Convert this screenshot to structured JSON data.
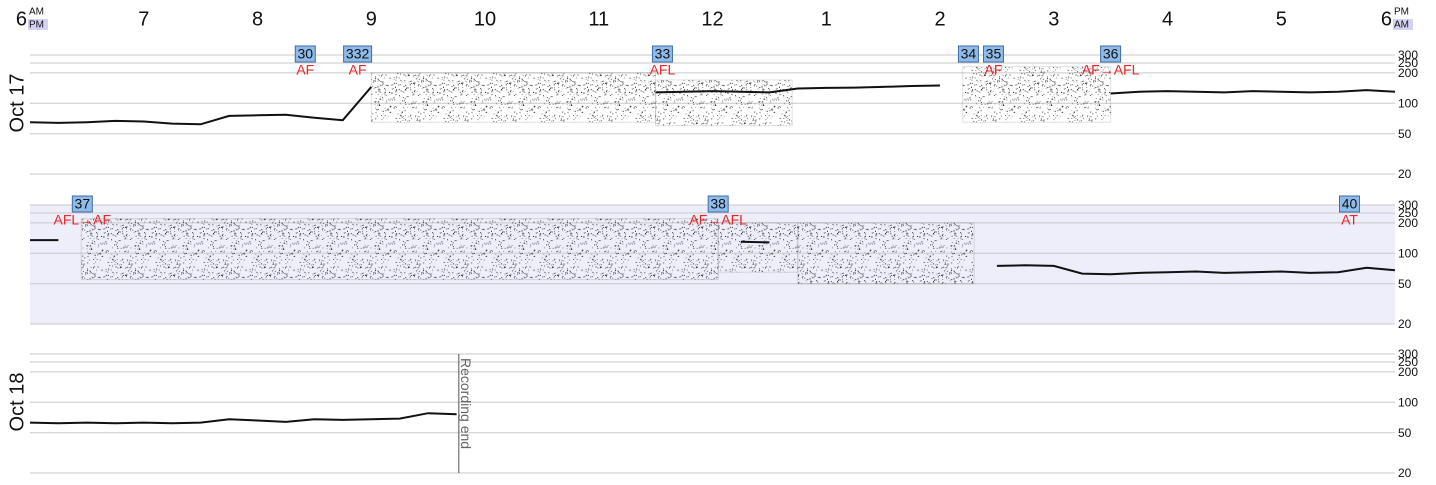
{
  "time_axis": {
    "ticks": [
      {
        "value": 0,
        "label": "6"
      },
      {
        "value": 1,
        "label": "7"
      },
      {
        "value": 2,
        "label": "8"
      },
      {
        "value": 3,
        "label": "9"
      },
      {
        "value": 4,
        "label": "10"
      },
      {
        "value": 5,
        "label": "11"
      },
      {
        "value": 6,
        "label": "12"
      },
      {
        "value": 7,
        "label": "1"
      },
      {
        "value": 8,
        "label": "2"
      },
      {
        "value": 9,
        "label": "3"
      },
      {
        "value": 10,
        "label": "4"
      },
      {
        "value": 11,
        "label": "5"
      },
      {
        "value": 12,
        "label": "6"
      }
    ],
    "start_marker": {
      "top": "AM",
      "bottom": "PM"
    },
    "end_marker": {
      "top": "PM",
      "bottom": "AM"
    },
    "highlight_color": "#d4d2f4"
  },
  "chart_data": [
    {
      "type": "line",
      "row_label": "Oct 17",
      "xlim": [
        0,
        12
      ],
      "ylim": [
        20,
        300
      ],
      "yticks": [
        20,
        50,
        100,
        200,
        250,
        300
      ],
      "log_scale": true,
      "grid": true,
      "background": "#ffffff",
      "x": [
        0,
        0.25,
        0.5,
        0.75,
        1,
        1.25,
        1.5,
        1.75,
        2,
        2.25,
        2.5,
        2.75,
        3,
        3.25,
        3.5,
        3.75,
        4,
        4.25,
        4.5,
        4.75,
        5,
        5.25,
        5.5,
        5.75,
        6,
        6.25,
        6.5,
        6.75,
        7,
        7.25,
        7.5,
        7.75,
        8,
        8.25,
        8.5,
        8.75,
        9,
        9.25,
        9.5,
        9.75,
        10,
        10.25,
        10.5,
        10.75,
        11,
        11.25,
        11.5,
        11.75,
        12
      ],
      "series": [
        {
          "color": "#111111",
          "values": [
            65,
            64,
            65,
            67,
            66,
            63,
            62,
            75,
            76,
            77,
            72,
            68,
            145,
            null,
            null,
            null,
            null,
            null,
            null,
            null,
            null,
            null,
            128,
            130,
            132,
            130,
            128,
            140,
            142,
            143,
            145,
            148,
            150,
            null,
            null,
            null,
            null,
            null,
            125,
            130,
            132,
            130,
            128,
            132,
            130,
            128,
            130,
            135,
            130
          ]
        }
      ],
      "band_color": "#333333",
      "bands": [
        {
          "x": [
            3.0,
            5.5
          ],
          "low": 65,
          "high": 200
        },
        {
          "x": [
            5.5,
            6.7
          ],
          "low": 60,
          "high": 170
        },
        {
          "x": [
            8.2,
            9.5
          ],
          "low": 65,
          "high": 230
        }
      ],
      "events": [
        {
          "x": 2.42,
          "number": "30",
          "label": "AF"
        },
        {
          "x": 2.88,
          "number": "332",
          "label": "AF"
        },
        {
          "x": 5.56,
          "number": "33",
          "label": "AFL"
        },
        {
          "x": 8.25,
          "number": "34"
        },
        {
          "x": 8.47,
          "number": "35",
          "label": "AF"
        },
        {
          "x": 9.5,
          "number": "36",
          "label": "AF→AFL"
        }
      ]
    },
    {
      "type": "line",
      "xlim": [
        0,
        12
      ],
      "ylim": [
        20,
        300
      ],
      "yticks": [
        20,
        50,
        100,
        200,
        250,
        300
      ],
      "log_scale": true,
      "grid": true,
      "background": "#eeeefa",
      "x": [
        0,
        0.25,
        0.5,
        0.75,
        1,
        1.25,
        1.5,
        1.75,
        2,
        2.25,
        2.5,
        2.75,
        3,
        3.25,
        3.5,
        3.75,
        4,
        4.25,
        4.5,
        4.75,
        5,
        5.25,
        5.5,
        5.75,
        6,
        6.25,
        6.5,
        6.75,
        7,
        7.25,
        7.5,
        7.75,
        8,
        8.25,
        8.5,
        8.75,
        9,
        9.25,
        9.5,
        9.75,
        10,
        10.25,
        10.5,
        10.75,
        11,
        11.25,
        11.5,
        11.75,
        12
      ],
      "series": [
        {
          "color": "#111111",
          "values": [
            135,
            135,
            null,
            null,
            null,
            null,
            null,
            null,
            null,
            null,
            null,
            null,
            null,
            null,
            null,
            null,
            null,
            null,
            null,
            null,
            null,
            null,
            null,
            null,
            null,
            130,
            128,
            null,
            null,
            null,
            null,
            null,
            null,
            null,
            75,
            76,
            75,
            63,
            62,
            64,
            65,
            66,
            64,
            65,
            66,
            64,
            65,
            72,
            68
          ]
        }
      ],
      "band_color": "#333333",
      "bands": [
        {
          "x": [
            0.45,
            6.05
          ],
          "low": 55,
          "high": 220
        },
        {
          "x": [
            6.05,
            6.75
          ],
          "low": 65,
          "high": 200
        },
        {
          "x": [
            6.75,
            8.3
          ],
          "low": 50,
          "high": 200
        }
      ],
      "events": [
        {
          "x": 0.46,
          "number": "37",
          "label": "AFL→AF"
        },
        {
          "x": 6.05,
          "number": "38",
          "label": "AF→AFL"
        },
        {
          "x": 11.6,
          "number": "40",
          "label": "AT"
        }
      ]
    },
    {
      "type": "line",
      "row_label": "Oct 18",
      "xlim": [
        0,
        12
      ],
      "ylim": [
        20,
        300
      ],
      "yticks": [
        20,
        50,
        100,
        200,
        250,
        300
      ],
      "log_scale": true,
      "grid": true,
      "background": "#ffffff",
      "x": [
        0,
        0.25,
        0.5,
        0.75,
        1,
        1.25,
        1.5,
        1.75,
        2,
        2.25,
        2.5,
        2.75,
        3,
        3.25,
        3.5,
        3.75
      ],
      "series": [
        {
          "color": "#111111",
          "values": [
            63,
            62,
            63,
            62,
            63,
            62,
            63,
            68,
            66,
            64,
            68,
            67,
            68,
            69,
            78,
            76
          ]
        }
      ],
      "annotation": {
        "x": 3.77,
        "text": "Recording end"
      }
    }
  ]
}
